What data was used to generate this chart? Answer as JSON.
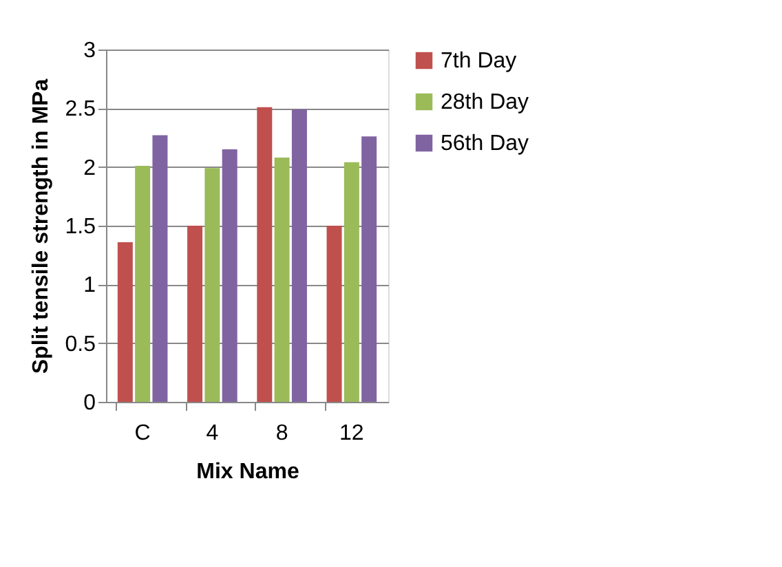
{
  "chart_data": {
    "type": "bar",
    "xlabel": "Mix Name",
    "ylabel": "Split tensile strength in MPa",
    "categories": [
      "C",
      "4",
      "8",
      "12"
    ],
    "series": [
      {
        "name": "7th Day",
        "color": "#c0504d",
        "values": [
          1.36,
          1.5,
          2.51,
          1.5
        ]
      },
      {
        "name": "28th Day",
        "color": "#9bbb59",
        "values": [
          2.01,
          1.99,
          2.08,
          2.04
        ]
      },
      {
        "name": "56th Day",
        "color": "#8064a2",
        "values": [
          2.27,
          2.15,
          2.49,
          2.26
        ]
      }
    ],
    "ylim": [
      0,
      3
    ],
    "yticks": [
      0,
      0.5,
      1,
      1.5,
      2,
      2.5,
      3
    ],
    "grid": "y",
    "legend": "right"
  }
}
